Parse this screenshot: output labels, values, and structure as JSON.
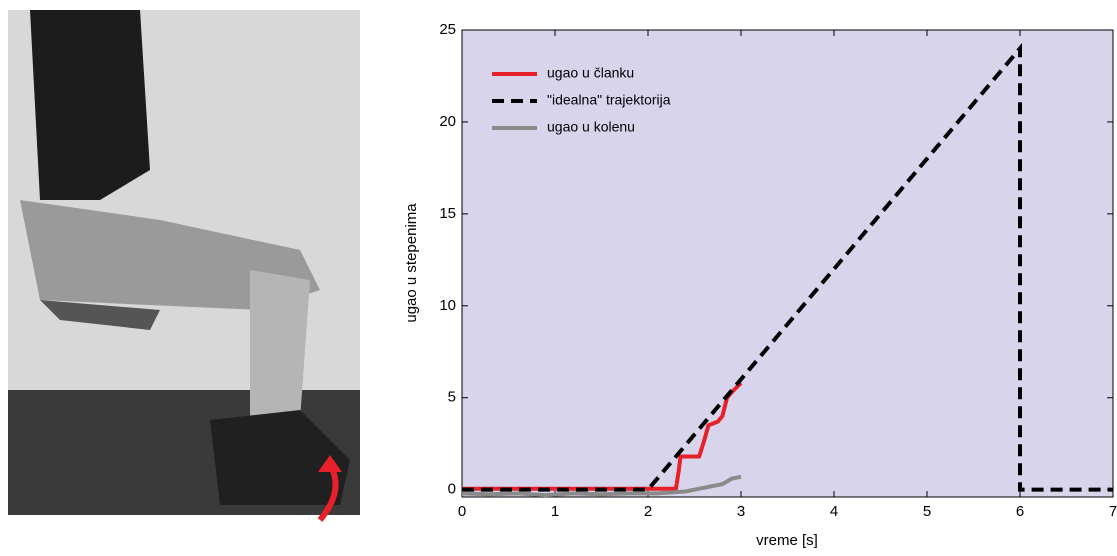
{
  "chart_data": {
    "type": "line",
    "xlabel": "vreme [s]",
    "ylabel": "ugao u stepenima",
    "xlim": [
      0,
      7
    ],
    "ylim": [
      -0.4,
      25
    ],
    "xticks": [
      0,
      1,
      2,
      3,
      4,
      5,
      6,
      7
    ],
    "yticks": [
      0,
      5,
      10,
      15,
      20,
      25
    ],
    "legend": "upper left",
    "background": "#d8d4ec",
    "series": [
      {
        "name": "ugao u članku",
        "color": "#e8202a",
        "dash": false,
        "x": [
          0,
          0.5,
          1,
          1.5,
          2,
          2.3,
          2.33,
          2.35,
          2.55,
          2.6,
          2.65,
          2.7,
          2.75,
          2.8,
          2.85,
          2.9,
          3.0
        ],
        "values": [
          0.05,
          0.05,
          0.05,
          0.05,
          0.05,
          0.05,
          1.0,
          1.8,
          1.8,
          2.6,
          3.5,
          3.6,
          3.7,
          4.0,
          5.0,
          5.3,
          5.8
        ]
      },
      {
        "name": "\"idealna\" trajektorija",
        "color": "#000000",
        "dash": true,
        "x": [
          0,
          2,
          6,
          6,
          7
        ],
        "values": [
          0,
          0,
          24,
          0,
          0
        ]
      },
      {
        "name": "ugao u kolenu",
        "color": "#8a8a8a",
        "dash": false,
        "x": [
          0,
          0.3,
          0.6,
          0.9,
          1.2,
          1.5,
          1.8,
          2.1,
          2.4,
          2.6,
          2.8,
          2.9,
          3.0
        ],
        "values": [
          -0.2,
          -0.25,
          -0.2,
          -0.3,
          -0.2,
          -0.25,
          -0.2,
          -0.2,
          -0.1,
          0.1,
          0.3,
          0.6,
          0.7
        ]
      }
    ]
  }
}
